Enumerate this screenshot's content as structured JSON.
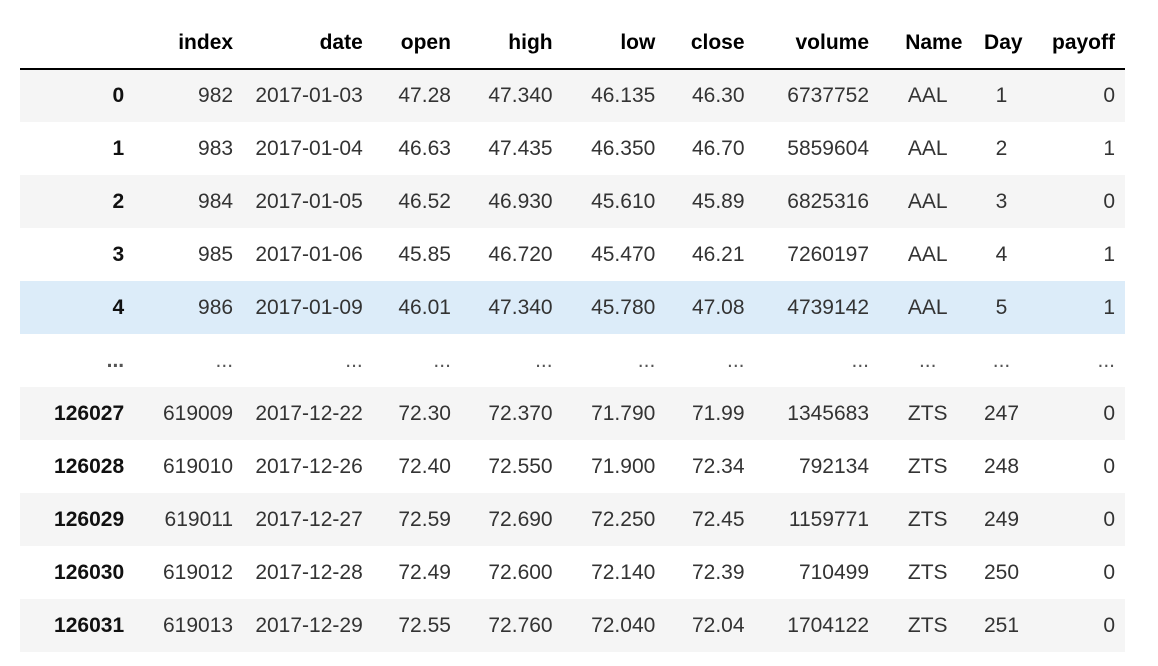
{
  "dataframe": {
    "columns": [
      "",
      "index",
      "date",
      "open",
      "high",
      "low",
      "close",
      "volume",
      "Name",
      "Day",
      "payoff"
    ],
    "rows": [
      {
        "idx": "0",
        "index": "982",
        "date": "2017-01-03",
        "open": "47.28",
        "high": "47.340",
        "low": "46.135",
        "close": "46.30",
        "volume": "6737752",
        "name": "AAL",
        "day": "1",
        "payoff": "0"
      },
      {
        "idx": "1",
        "index": "983",
        "date": "2017-01-04",
        "open": "46.63",
        "high": "47.435",
        "low": "46.350",
        "close": "46.70",
        "volume": "5859604",
        "name": "AAL",
        "day": "2",
        "payoff": "1"
      },
      {
        "idx": "2",
        "index": "984",
        "date": "2017-01-05",
        "open": "46.52",
        "high": "46.930",
        "low": "45.610",
        "close": "45.89",
        "volume": "6825316",
        "name": "AAL",
        "day": "3",
        "payoff": "0"
      },
      {
        "idx": "3",
        "index": "985",
        "date": "2017-01-06",
        "open": "45.85",
        "high": "46.720",
        "low": "45.470",
        "close": "46.21",
        "volume": "7260197",
        "name": "AAL",
        "day": "4",
        "payoff": "1"
      },
      {
        "idx": "4",
        "index": "986",
        "date": "2017-01-09",
        "open": "46.01",
        "high": "47.340",
        "low": "45.780",
        "close": "47.08",
        "volume": "4739142",
        "name": "AAL",
        "day": "5",
        "payoff": "1"
      },
      {
        "idx": "...",
        "index": "...",
        "date": "...",
        "open": "...",
        "high": "...",
        "low": "...",
        "close": "...",
        "volume": "...",
        "name": "...",
        "day": "...",
        "payoff": "..."
      },
      {
        "idx": "126027",
        "index": "619009",
        "date": "2017-12-22",
        "open": "72.30",
        "high": "72.370",
        "low": "71.790",
        "close": "71.99",
        "volume": "1345683",
        "name": "ZTS",
        "day": "247",
        "payoff": "0"
      },
      {
        "idx": "126028",
        "index": "619010",
        "date": "2017-12-26",
        "open": "72.40",
        "high": "72.550",
        "low": "71.900",
        "close": "72.34",
        "volume": "792134",
        "name": "ZTS",
        "day": "248",
        "payoff": "0"
      },
      {
        "idx": "126029",
        "index": "619011",
        "date": "2017-12-27",
        "open": "72.59",
        "high": "72.690",
        "low": "72.250",
        "close": "72.45",
        "volume": "1159771",
        "name": "ZTS",
        "day": "249",
        "payoff": "0"
      },
      {
        "idx": "126030",
        "index": "619012",
        "date": "2017-12-28",
        "open": "72.49",
        "high": "72.600",
        "low": "72.140",
        "close": "72.39",
        "volume": "710499",
        "name": "ZTS",
        "day": "250",
        "payoff": "0"
      },
      {
        "idx": "126031",
        "index": "619013",
        "date": "2017-12-29",
        "open": "72.55",
        "high": "72.760",
        "low": "72.040",
        "close": "72.04",
        "volume": "1704122",
        "name": "ZTS",
        "day": "251",
        "payoff": "0"
      }
    ],
    "hovered_row": 4,
    "colors": {
      "stripe": "#f5f5f5",
      "hover": "#dcecf9",
      "header_rule": "#000000"
    }
  }
}
